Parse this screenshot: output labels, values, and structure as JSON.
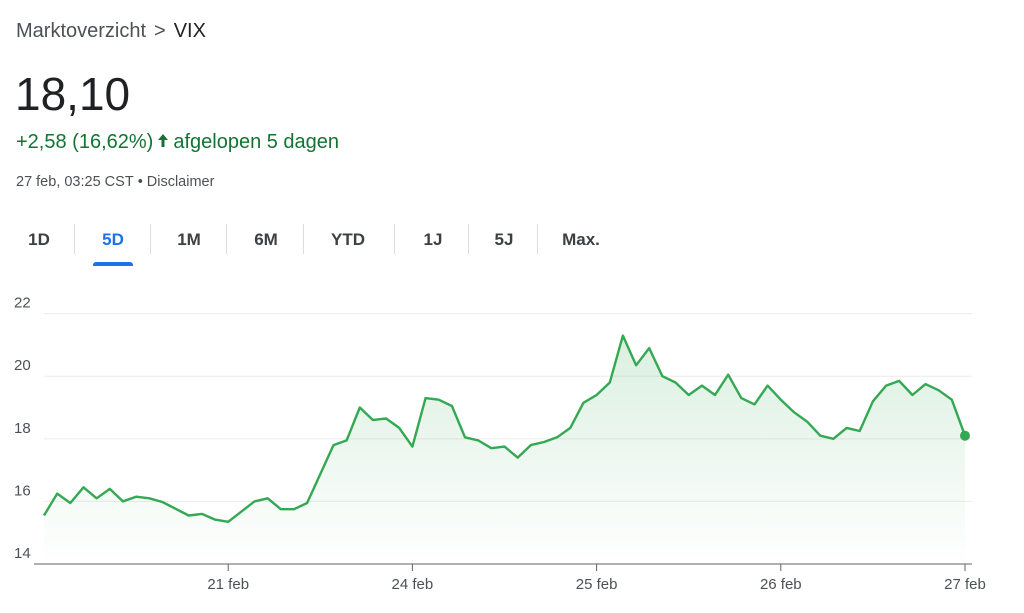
{
  "breadcrumb": {
    "parent": "Marktoverzicht",
    "separator": ">",
    "current": "VIX"
  },
  "quote": {
    "price": "18,10",
    "change": "+2,58 (16,62%)",
    "direction_icon": "arrow-up-icon",
    "period_label": "afgelopen 5 dagen",
    "timestamp": "27 feb, 03:25 CST",
    "disclaimer": "Disclaimer"
  },
  "range_tabs": [
    {
      "label": "1D",
      "active": false
    },
    {
      "label": "5D",
      "active": true
    },
    {
      "label": "1M",
      "active": false
    },
    {
      "label": "6M",
      "active": false
    },
    {
      "label": "YTD",
      "active": false
    },
    {
      "label": "1J",
      "active": false
    },
    {
      "label": "5J",
      "active": false
    },
    {
      "label": "Max.",
      "active": false
    }
  ],
  "colors": {
    "up": "#137333",
    "line": "#34a853",
    "accent": "#1a73e8",
    "grid": "#ebebeb"
  },
  "chart_data": {
    "type": "area",
    "ylim": [
      14,
      22.5
    ],
    "yticks": [
      14,
      16,
      18,
      20,
      22
    ],
    "yticklabels": [
      "14",
      "16",
      "18",
      "20",
      "22"
    ],
    "grid": true,
    "xticks": [
      {
        "label": "21 feb",
        "at": 7
      },
      {
        "label": "24 feb",
        "at": 14
      },
      {
        "label": "25 feb",
        "at": 21
      },
      {
        "label": "26 feb",
        "at": 28
      },
      {
        "label": "27 feb",
        "at": 35
      }
    ],
    "x_span": [
      0,
      35
    ],
    "series": [
      {
        "values": [
          [
            0,
            15.55
          ],
          [
            0.5,
            16.25
          ],
          [
            1.0,
            15.95
          ],
          [
            1.5,
            16.45
          ],
          [
            2.0,
            16.1
          ],
          [
            2.5,
            16.4
          ],
          [
            3.0,
            16.0
          ],
          [
            3.5,
            16.15
          ],
          [
            4.0,
            16.1
          ],
          [
            4.5,
            15.98
          ],
          [
            5.5,
            15.55
          ],
          [
            6.0,
            15.6
          ],
          [
            6.5,
            15.42
          ],
          [
            7.0,
            15.35
          ],
          [
            8.0,
            16.0
          ],
          [
            8.5,
            16.1
          ],
          [
            9.0,
            15.75
          ],
          [
            9.5,
            15.75
          ],
          [
            10.0,
            15.95
          ],
          [
            11.0,
            17.8
          ],
          [
            11.5,
            17.95
          ],
          [
            12.0,
            19.0
          ],
          [
            12.5,
            18.6
          ],
          [
            13.0,
            18.65
          ],
          [
            13.5,
            18.35
          ],
          [
            14.0,
            17.75
          ],
          [
            14.5,
            19.3
          ],
          [
            15.0,
            19.25
          ],
          [
            15.5,
            19.05
          ],
          [
            16.0,
            18.05
          ],
          [
            16.5,
            17.95
          ],
          [
            17.0,
            17.7
          ],
          [
            17.5,
            17.75
          ],
          [
            18.0,
            17.4
          ],
          [
            18.5,
            17.8
          ],
          [
            19.0,
            17.9
          ],
          [
            19.5,
            18.05
          ],
          [
            20.0,
            18.35
          ],
          [
            20.5,
            19.15
          ],
          [
            21.0,
            19.4
          ],
          [
            21.5,
            19.8
          ],
          [
            22.0,
            21.3
          ],
          [
            22.5,
            20.35
          ],
          [
            23.0,
            20.9
          ],
          [
            23.5,
            20.0
          ],
          [
            24.0,
            19.8
          ],
          [
            24.5,
            19.4
          ],
          [
            25.0,
            19.7
          ],
          [
            25.5,
            19.4
          ],
          [
            26.0,
            20.05
          ],
          [
            26.5,
            19.3
          ],
          [
            27.0,
            19.1
          ],
          [
            27.5,
            19.7
          ],
          [
            28.0,
            19.25
          ],
          [
            28.5,
            18.85
          ],
          [
            29.0,
            18.55
          ],
          [
            29.5,
            18.1
          ],
          [
            30.0,
            18.0
          ],
          [
            30.5,
            18.35
          ],
          [
            31.0,
            18.25
          ],
          [
            31.5,
            19.2
          ],
          [
            32.0,
            19.7
          ],
          [
            32.5,
            19.85
          ],
          [
            33.0,
            19.4
          ],
          [
            33.5,
            19.75
          ],
          [
            34.0,
            19.55
          ],
          [
            34.5,
            19.25
          ],
          [
            35.0,
            18.1
          ]
        ]
      }
    ]
  }
}
